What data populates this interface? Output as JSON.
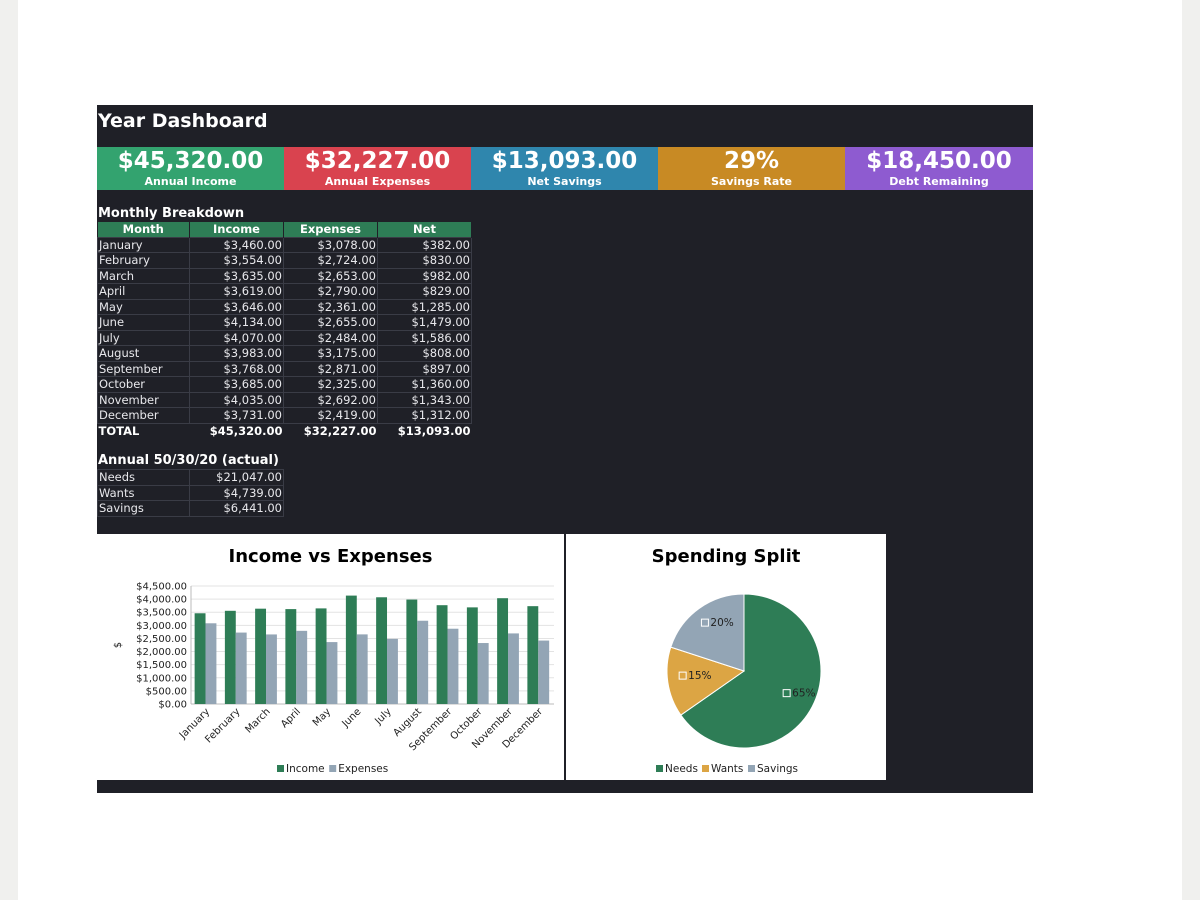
{
  "dashboard": {
    "title": "Year Dashboard"
  },
  "kpis": [
    {
      "value": "$45,320.00",
      "label": "Annual Income",
      "color": "#33a36f"
    },
    {
      "value": "$32,227.00",
      "label": "Annual Expenses",
      "color": "#d9434f"
    },
    {
      "value": "$13,093.00",
      "label": "Net Savings",
      "color": "#2f86ad"
    },
    {
      "value": "29%",
      "label": "Savings Rate",
      "color": "#c88a24"
    },
    {
      "value": "$18,450.00",
      "label": "Debt Remaining",
      "color": "#8e5bd0"
    }
  ],
  "monthly": {
    "title": "Monthly Breakdown",
    "headers": [
      "Month",
      "Income",
      "Expenses",
      "Net"
    ],
    "rows": [
      [
        "January",
        "$3,460.00",
        "$3,078.00",
        "$382.00"
      ],
      [
        "February",
        "$3,554.00",
        "$2,724.00",
        "$830.00"
      ],
      [
        "March",
        "$3,635.00",
        "$2,653.00",
        "$982.00"
      ],
      [
        "April",
        "$3,619.00",
        "$2,790.00",
        "$829.00"
      ],
      [
        "May",
        "$3,646.00",
        "$2,361.00",
        "$1,285.00"
      ],
      [
        "June",
        "$4,134.00",
        "$2,655.00",
        "$1,479.00"
      ],
      [
        "July",
        "$4,070.00",
        "$2,484.00",
        "$1,586.00"
      ],
      [
        "August",
        "$3,983.00",
        "$3,175.00",
        "$808.00"
      ],
      [
        "September",
        "$3,768.00",
        "$2,871.00",
        "$897.00"
      ],
      [
        "October",
        "$3,685.00",
        "$2,325.00",
        "$1,360.00"
      ],
      [
        "November",
        "$4,035.00",
        "$2,692.00",
        "$1,343.00"
      ],
      [
        "December",
        "$3,731.00",
        "$2,419.00",
        "$1,312.00"
      ]
    ],
    "total": [
      "TOTAL",
      "$45,320.00",
      "$32,227.00",
      "$13,093.00"
    ]
  },
  "split": {
    "title": "Annual 50/30/20 (actual)",
    "rows": [
      [
        "Needs",
        "$21,047.00"
      ],
      [
        "Wants",
        "$4,739.00"
      ],
      [
        "Savings",
        "$6,441.00"
      ]
    ]
  },
  "chart_data": [
    {
      "type": "bar",
      "title": "Income vs Expenses",
      "xlabel": "",
      "ylabel": "$",
      "ylim": [
        0,
        4500
      ],
      "yticks": [
        "$0.00",
        "$500.00",
        "$1,000.00",
        "$1,500.00",
        "$2,000.00",
        "$2,500.00",
        "$3,000.00",
        "$3,500.00",
        "$4,000.00",
        "$4,500.00"
      ],
      "categories": [
        "January",
        "February",
        "March",
        "April",
        "May",
        "June",
        "July",
        "August",
        "September",
        "October",
        "November",
        "December"
      ],
      "series": [
        {
          "name": "Income",
          "color": "#2e7d56",
          "values": [
            3460,
            3554,
            3635,
            3619,
            3646,
            4134,
            4070,
            3983,
            3768,
            3685,
            4035,
            3731
          ]
        },
        {
          "name": "Expenses",
          "color": "#93a5b5",
          "values": [
            3078,
            2724,
            2653,
            2790,
            2361,
            2655,
            2484,
            3175,
            2871,
            2325,
            2692,
            2419
          ]
        }
      ],
      "legend": "bottom",
      "grid": true
    },
    {
      "type": "pie",
      "title": "Spending Split",
      "slices": [
        {
          "name": "Needs",
          "value": 21047,
          "label": "65%",
          "color": "#2e7d56"
        },
        {
          "name": "Wants",
          "value": 4739,
          "label": "15%",
          "color": "#dca544"
        },
        {
          "name": "Savings",
          "value": 6441,
          "label": "20%",
          "color": "#93a5b5"
        }
      ],
      "legend": "bottom"
    }
  ]
}
